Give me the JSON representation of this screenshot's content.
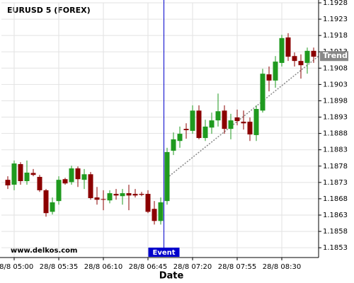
{
  "chart_data": {
    "type": "candlestick",
    "title": "EURUSD 5 (FOREX)",
    "xlabel": "Date",
    "watermark": "www.delkos.com",
    "categories": [
      null,
      "28/8 05:00",
      null,
      null,
      null,
      null,
      null,
      null,
      "28/8 05:35",
      null,
      null,
      null,
      null,
      null,
      null,
      "28/8 06:10",
      null,
      null,
      null,
      null,
      null,
      null,
      "28/8 06:45",
      null,
      null,
      null,
      null,
      null,
      null,
      "28/8 07:20",
      null,
      null,
      null,
      null,
      null,
      null,
      "28/8 07:55",
      null,
      null,
      null,
      null,
      null,
      null,
      "28/8 08:30",
      null,
      null,
      null,
      null,
      null
    ],
    "open": [
      1.18738,
      1.18723,
      1.18786,
      1.18734,
      1.18759,
      1.18747,
      1.18706,
      1.1864,
      1.18673,
      1.1874,
      1.18731,
      1.18773,
      1.18738,
      1.18755,
      1.18684,
      1.18679,
      1.18675,
      1.18695,
      1.18688,
      1.18697,
      1.18695,
      1.18695,
      1.18695,
      1.18649,
      1.18612,
      1.18673,
      1.18827,
      1.18857,
      1.18894,
      1.18888,
      1.1895,
      1.18866,
      1.18898,
      1.1892,
      1.1895,
      1.18894,
      1.18929,
      1.18916,
      1.18916,
      1.18875,
      1.1895,
      1.19061,
      1.19042,
      1.19096,
      1.19174,
      1.19117,
      1.19102,
      1.19096,
      1.19133
    ],
    "high": [
      1.18749,
      1.18797,
      1.18792,
      1.18797,
      1.18771,
      1.18753,
      1.1871,
      1.18684,
      1.18749,
      1.18744,
      1.18781,
      1.18779,
      1.18771,
      1.18762,
      1.18716,
      1.18706,
      1.18706,
      1.1871,
      1.1871,
      1.18723,
      1.1871,
      1.18701,
      1.18706,
      1.18673,
      1.18684,
      1.18836,
      1.18883,
      1.18901,
      1.18911,
      1.18966,
      1.18966,
      1.18922,
      1.18944,
      1.19002,
      1.18966,
      1.1894,
      1.18953,
      1.1895,
      1.18929,
      1.18966,
      1.19078,
      1.19085,
      1.19117,
      1.19182,
      1.19187,
      1.19128,
      1.19122,
      1.19143,
      1.19143
    ],
    "low": [
      1.1871,
      1.18706,
      1.18723,
      1.18723,
      1.18749,
      1.18701,
      1.18625,
      1.18632,
      1.18662,
      1.18723,
      1.18723,
      1.18716,
      1.1871,
      1.18677,
      1.18662,
      1.18645,
      1.18666,
      1.18677,
      1.18662,
      1.18645,
      1.18684,
      1.18688,
      1.18636,
      1.18601,
      1.18601,
      1.18662,
      1.18814,
      1.18836,
      1.18864,
      1.18879,
      1.18862,
      1.18857,
      1.18879,
      1.18901,
      1.18879,
      1.18862,
      1.18905,
      1.18892,
      1.18857,
      1.18857,
      1.18944,
      1.19009,
      1.1902,
      1.19085,
      1.19102,
      1.19085,
      1.19048,
      1.19063,
      1.19096
    ],
    "close": [
      1.18721,
      1.18788,
      1.18734,
      1.1876,
      1.18753,
      1.18706,
      1.18636,
      1.18669,
      1.18738,
      1.18727,
      1.18773,
      1.1874,
      1.18755,
      1.18682,
      1.18677,
      1.18677,
      1.18697,
      1.1869,
      1.18697,
      1.1869,
      1.1869,
      1.18692,
      1.1864,
      1.18612,
      1.18669,
      1.18823,
      1.18862,
      1.18879,
      1.1889,
      1.1895,
      1.18866,
      1.18901,
      1.1892,
      1.18948,
      1.18894,
      1.1892,
      1.18918,
      1.18911,
      1.18877,
      1.18955,
      1.19063,
      1.19042,
      1.191,
      1.19172,
      1.19115,
      1.19102,
      1.19089,
      1.19133,
      1.19115
    ],
    "up_color": "#1f9a1f",
    "down_color": "#8b0000",
    "ylim": [
      1.185,
      1.1928
    ],
    "yticks": [
      1.1928,
      1.1923,
      1.1918,
      1.1913,
      1.1908,
      1.1903,
      1.1898,
      1.1893,
      1.1888,
      1.1883,
      1.1878,
      1.1873,
      1.1868,
      1.1863,
      1.1858,
      1.1853
    ],
    "grid": true,
    "event": {
      "label": "Event",
      "color": "#0000cc"
    },
    "trend": {
      "label": "Trend",
      "start": 1.18744,
      "end": 1.19117,
      "color": "#888888"
    }
  }
}
